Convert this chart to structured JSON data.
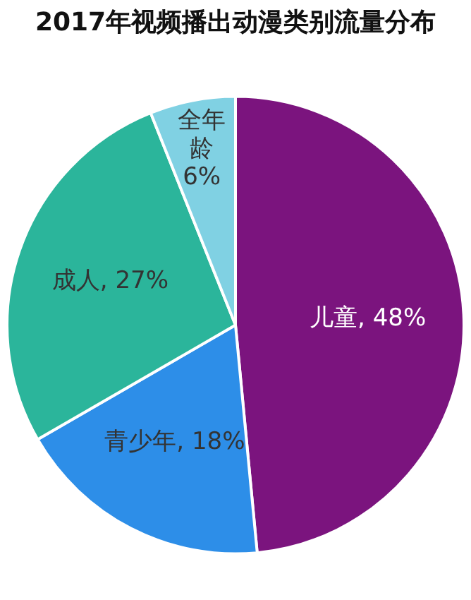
{
  "chart_data": {
    "type": "pie",
    "title": "2017年视频播出动漫类别流量分布",
    "categories": [
      "儿童",
      "青少年",
      "成人",
      "全年龄"
    ],
    "values": [
      48,
      18,
      27,
      6
    ],
    "value_labels": [
      "48%",
      "18%",
      "27%",
      "6%"
    ],
    "colors": [
      "#7b147e",
      "#2d8ee8",
      "#2bb59b",
      "#80d1e3"
    ],
    "legend": false
  }
}
